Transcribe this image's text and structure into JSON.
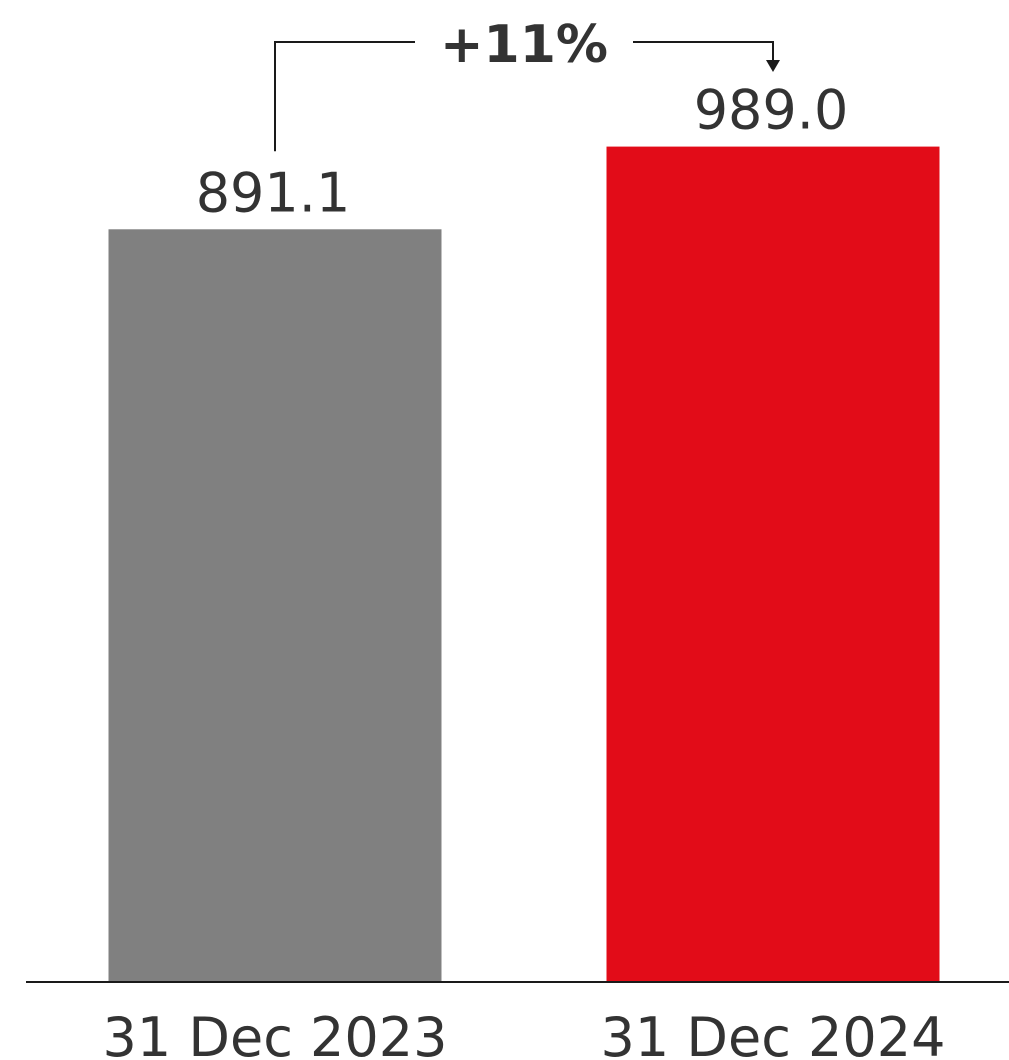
{
  "chart_data": {
    "type": "bar",
    "categories": [
      "31 Dec 2023",
      "31 Dec 2024"
    ],
    "values": [
      891.1,
      989.0
    ],
    "value_labels": [
      "891.1",
      "989.0"
    ],
    "colors": [
      "#808080",
      "#e20c18"
    ],
    "annotation": {
      "text": "+11%",
      "from_category": "31 Dec 2023",
      "to_category": "31 Dec 2024"
    },
    "title": "",
    "xlabel": "",
    "ylabel": "",
    "ylim": [
      0,
      1100
    ],
    "grid": false,
    "legend": "none"
  }
}
